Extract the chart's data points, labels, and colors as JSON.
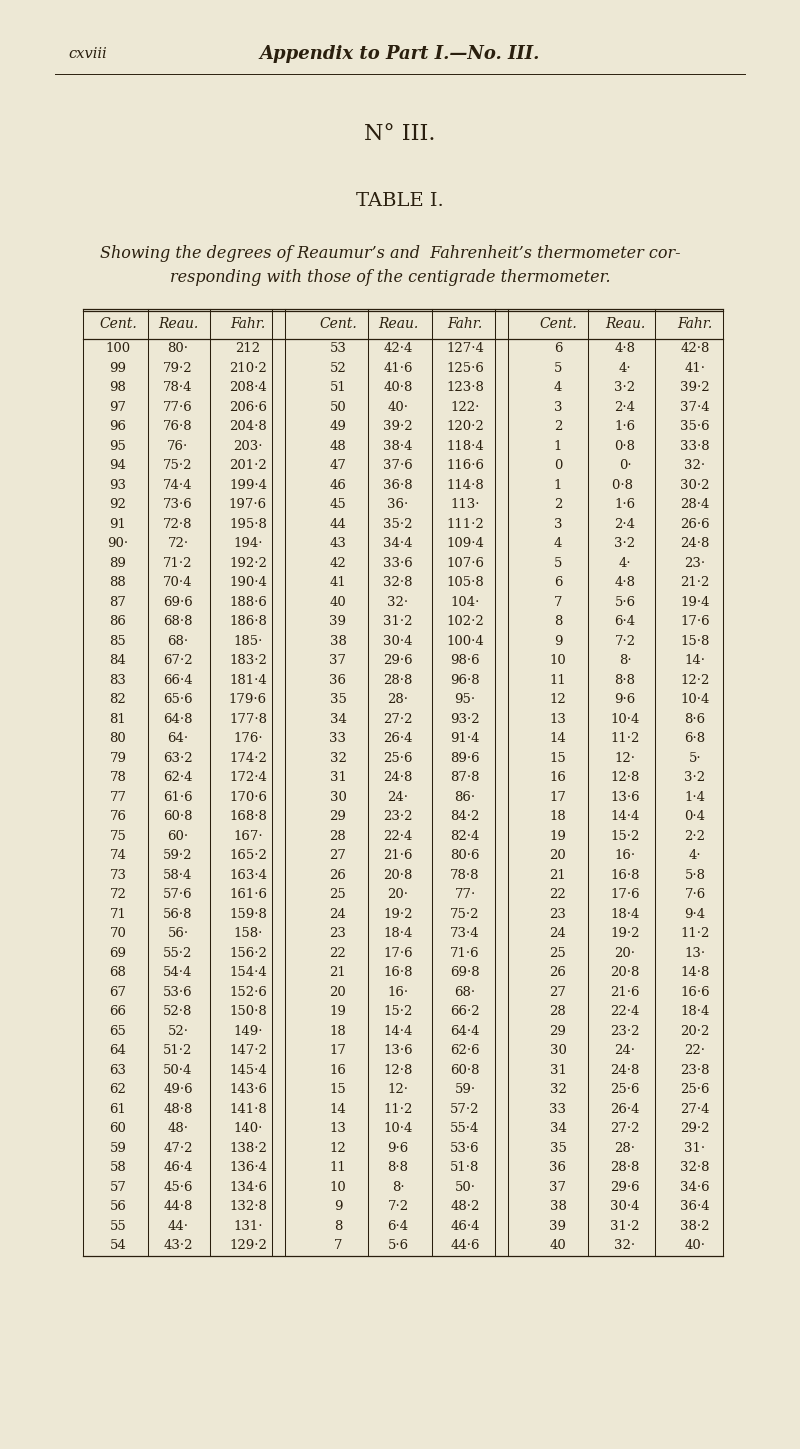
{
  "bg_color": "#ede8d5",
  "text_color": "#2a1f0e",
  "header_left": "cxviii",
  "header_center": "Appendix to Part I.—No. III.",
  "no_iii": "N° III.",
  "table_title": "TABLE I.",
  "subtitle_line1": "Showing the degrees of Reaumur’s and  Fahrenheit’s thermometer cor-",
  "subtitle_line2": "responding with those of the centigrade thermometer.",
  "col_headers": [
    "Cent.",
    "Reau.",
    "Fahr.",
    "Cent.",
    "Reau.",
    "Fahr.",
    "Cent.",
    "Reau.",
    "Fahr."
  ],
  "rows": [
    [
      "100",
      "80·",
      "212",
      "53",
      "42·4",
      "127·4",
      "6",
      "4·8",
      "42·8"
    ],
    [
      "99",
      "79·2",
      "210·2",
      "52",
      "41·6",
      "125·6",
      "5",
      "4·",
      "41·"
    ],
    [
      "98",
      "78·4",
      "208·4",
      "51",
      "40·8",
      "123·8",
      "4",
      "3·2",
      "39·2"
    ],
    [
      "97",
      "77·6",
      "206·6",
      "50",
      "40·",
      "122·",
      "3",
      "2·4",
      "37·4"
    ],
    [
      "96",
      "76·8",
      "204·8",
      "49",
      "39·2",
      "120·2",
      "2",
      "1·6",
      "35·6"
    ],
    [
      "95",
      "76·",
      "203·",
      "48",
      "38·4",
      "118·4",
      "1",
      "0·8",
      "33·8"
    ],
    [
      "94",
      "75·2",
      "201·2",
      "47",
      "37·6",
      "116·6",
      "0",
      "0·",
      "32·"
    ],
    [
      "93",
      "74·4",
      "199·4",
      "46",
      "36·8",
      "114·8",
      "1",
      "0·8 ",
      "30·2"
    ],
    [
      "92",
      "73·6",
      "197·6",
      "45",
      "36·",
      "113·",
      "2",
      "1·6",
      "28·4"
    ],
    [
      "91",
      "72·8",
      "195·8",
      "44",
      "35·2",
      "111·2",
      "3",
      "2·4",
      "26·6"
    ],
    [
      "90·",
      "72·",
      "194·",
      "43",
      "34·4",
      "109·4",
      "4",
      "3·2",
      "24·8"
    ],
    [
      "89",
      "71·2",
      "192·2",
      "42",
      "33·6",
      "107·6",
      "5",
      "4·",
      "23·"
    ],
    [
      "88",
      "70·4",
      "190·4",
      "41",
      "32·8",
      "105·8",
      "6",
      "4·8",
      "21·2"
    ],
    [
      "87",
      "69·6",
      "188·6",
      "40",
      "32·",
      "104·",
      "7",
      "5·6",
      "19·4"
    ],
    [
      "86",
      "68·8",
      "186·8",
      "39",
      "31·2",
      "102·2",
      "8",
      "6·4",
      "17·6"
    ],
    [
      "85",
      "68·",
      "185·",
      "38",
      "30·4",
      "100·4",
      "9",
      "7·2",
      "15·8"
    ],
    [
      "84",
      "67·2",
      "183·2",
      "37",
      "29·6",
      "98·6",
      "10",
      "8·",
      "14·"
    ],
    [
      "83",
      "66·4",
      "181·4",
      "36",
      "28·8",
      "96·8",
      "11",
      "8·8",
      "12·2"
    ],
    [
      "82",
      "65·6",
      "179·6",
      "35",
      "28·",
      "95·",
      "12",
      "9·6",
      "10·4"
    ],
    [
      "81",
      "64·8",
      "177·8",
      "34",
      "27·2",
      "93·2",
      "13",
      "10·4",
      "8·6"
    ],
    [
      "80",
      "64·",
      "176·",
      "33",
      "26·4",
      "91·4",
      "14",
      "11·2",
      "6·8"
    ],
    [
      "79",
      "63·2",
      "174·2",
      "32",
      "25·6",
      "89·6",
      "15",
      "12·",
      "5·"
    ],
    [
      "78",
      "62·4",
      "172·4",
      "31",
      "24·8",
      "87·8",
      "16",
      "12·8",
      "3·2"
    ],
    [
      "77",
      "61·6",
      "170·6",
      "30",
      "24·",
      "86·",
      "17",
      "13·6",
      "1·4"
    ],
    [
      "76",
      "60·8",
      "168·8",
      "29",
      "23·2",
      "84·2",
      "18",
      "14·4",
      "0·4"
    ],
    [
      "75",
      "60·",
      "167·",
      "28",
      "22·4",
      "82·4",
      "19",
      "15·2",
      "2·2"
    ],
    [
      "74",
      "59·2",
      "165·2",
      "27",
      "21·6",
      "80·6",
      "20",
      "16·",
      "4·"
    ],
    [
      "73",
      "58·4",
      "163·4",
      "26",
      "20·8",
      "78·8",
      "21",
      "16·8",
      "5·8"
    ],
    [
      "72",
      "57·6",
      "161·6",
      "25",
      "20·",
      "77·",
      "22",
      "17·6",
      "7·6"
    ],
    [
      "71",
      "56·8",
      "159·8",
      "24",
      "19·2",
      "75·2",
      "23",
      "18·4",
      "9·4"
    ],
    [
      "70",
      "56·",
      "158·",
      "23",
      "18·4",
      "73·4",
      "24",
      "19·2",
      "11·2"
    ],
    [
      "69",
      "55·2",
      "156·2",
      "22",
      "17·6",
      "71·6",
      "25",
      "20·",
      "13·"
    ],
    [
      "68",
      "54·4",
      "154·4",
      "21",
      "16·8",
      "69·8",
      "26",
      "20·8",
      "14·8"
    ],
    [
      "67",
      "53·6",
      "152·6",
      "20",
      "16·",
      "68·",
      "27",
      "21·6",
      "16·6"
    ],
    [
      "66",
      "52·8",
      "150·8",
      "19",
      "15·2",
      "66·2",
      "28",
      "22·4",
      "18·4"
    ],
    [
      "65",
      "52·",
      "149·",
      "18",
      "14·4",
      "64·4",
      "29",
      "23·2",
      "20·2"
    ],
    [
      "64",
      "51·2",
      "147·2",
      "17",
      "13·6",
      "62·6",
      "30",
      "24·",
      "22·"
    ],
    [
      "63",
      "50·4",
      "145·4",
      "16",
      "12·8",
      "60·8",
      "31",
      "24·8",
      "23·8"
    ],
    [
      "62",
      "49·6",
      "143·6",
      "15",
      "12·",
      "59·",
      "32",
      "25·6",
      "25·6"
    ],
    [
      "61",
      "48·8",
      "141·8",
      "14",
      "11·2",
      "57·2",
      "33",
      "26·4",
      "27·4"
    ],
    [
      "60",
      "48·",
      "140·",
      "13",
      "10·4",
      "55·4",
      "34",
      "27·2",
      "29·2"
    ],
    [
      "59",
      "47·2",
      "138·2",
      "12",
      "9·6",
      "53·6",
      "35",
      "28·",
      "31·"
    ],
    [
      "58",
      "46·4",
      "136·4",
      "11",
      "8·8",
      "51·8",
      "36",
      "28·8",
      "32·8"
    ],
    [
      "57",
      "45·6",
      "134·6",
      "10",
      "8·",
      "50·",
      "37",
      "29·6",
      "34·6"
    ],
    [
      "56",
      "44·8",
      "132·8",
      "9",
      "7·2",
      "48·2",
      "38",
      "30·4",
      "36·4"
    ],
    [
      "55",
      "44·",
      "131·",
      "8",
      "6·4",
      "46·4",
      "39",
      "31·2",
      "38·2"
    ],
    [
      "54",
      "43·2",
      "129·2",
      "7",
      "5·6",
      "44·6",
      "40",
      "32·",
      "40·"
    ]
  ]
}
